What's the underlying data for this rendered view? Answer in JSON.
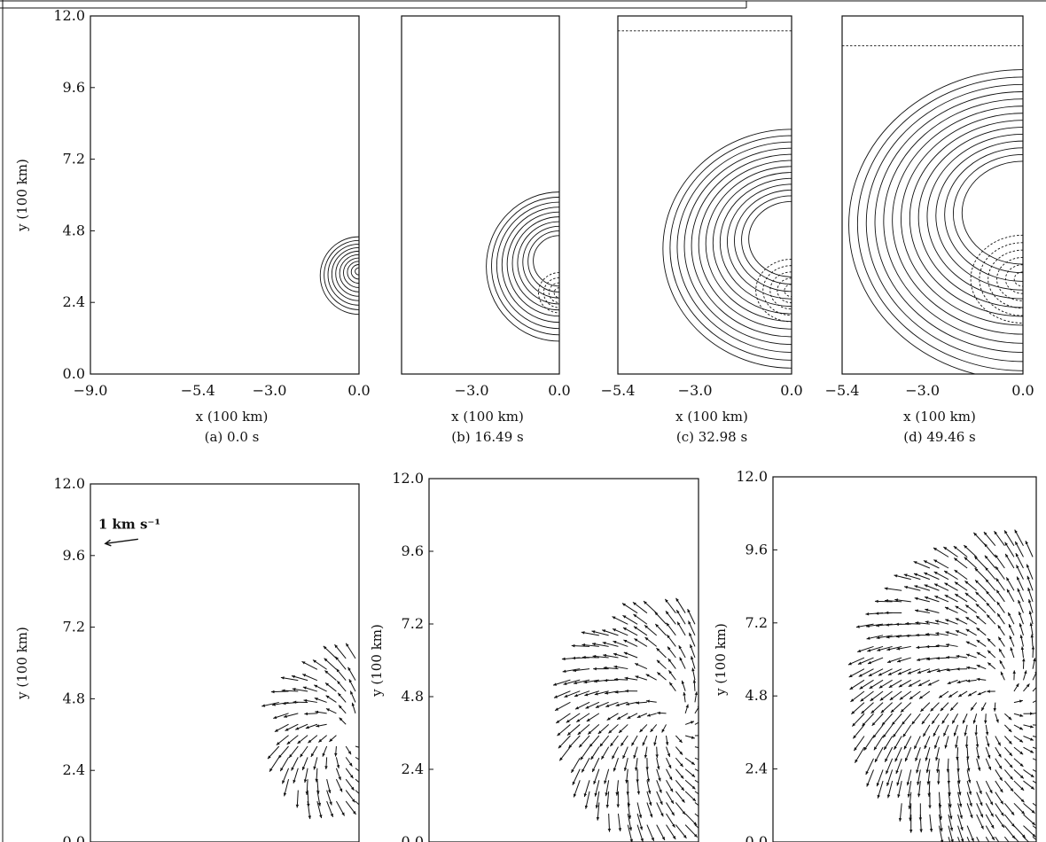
{
  "chart_data": [
    {
      "id": "a",
      "type": "contour",
      "caption": "(a)   0.0 s",
      "xlabel": "x (100 km)",
      "ylabel": "y (100 km)",
      "xlim": [
        -9.0,
        0.0
      ],
      "ylim": [
        0.0,
        12.0
      ],
      "xticks": [
        "−9.0",
        "−5.4",
        "−3.0",
        "0.0"
      ],
      "xtick_values": [
        -9.0,
        -5.4,
        -3.0,
        0.0
      ],
      "yticks": [
        "0.0",
        "2.4",
        "4.8",
        "7.2",
        "9.6",
        "12.0"
      ],
      "ytick_values": [
        0.0,
        2.4,
        4.8,
        7.2,
        9.6,
        12.0
      ],
      "feature": {
        "center": [
          0.0,
          3.3
        ],
        "radius": 1.3,
        "levels": 10,
        "dashed_levels": 0,
        "top_lines": []
      }
    },
    {
      "id": "b",
      "type": "contour",
      "caption": "(b)   16.49 s",
      "xlabel": "x (100 km)",
      "ylabel": "",
      "xlim": [
        -5.4,
        0.0
      ],
      "ylim": [
        0.0,
        12.0
      ],
      "xticks": [
        "−3.0",
        "0.0"
      ],
      "xtick_values": [
        -3.0,
        0.0
      ],
      "yticks": [],
      "ytick_values": [],
      "feature": {
        "center": [
          0.0,
          3.6
        ],
        "radius": 2.5,
        "levels": 14,
        "dashed_levels": 4,
        "top_lines": []
      }
    },
    {
      "id": "c",
      "type": "contour",
      "caption": "(c)   32.98 s",
      "xlabel": "x (100 km)",
      "ylabel": "",
      "xlim": [
        -5.4,
        0.0
      ],
      "ylim": [
        0.0,
        12.0
      ],
      "xticks": [
        "−5.4",
        "−3.0",
        "0.0"
      ],
      "xtick_values": [
        -5.4,
        -3.0,
        0.0
      ],
      "yticks": [],
      "ytick_values": [],
      "feature": {
        "center": [
          0.0,
          4.2
        ],
        "radius": 4.0,
        "levels": 18,
        "dashed_levels": 5,
        "top_lines": [
          11.5
        ]
      }
    },
    {
      "id": "d",
      "type": "contour",
      "caption": "(d)   49.46 s",
      "xlabel": "x (100 km)",
      "ylabel": "",
      "xlim": [
        -5.4,
        0.0
      ],
      "ylim": [
        0.0,
        12.0
      ],
      "xticks": [
        "−5.4",
        "−3.0",
        "0.0"
      ],
      "xtick_values": [
        -5.4,
        -3.0,
        0.0
      ],
      "yticks": [],
      "ytick_values": [],
      "feature": {
        "center": [
          0.0,
          5.0
        ],
        "radius": 5.2,
        "levels": 20,
        "dashed_levels": 6,
        "top_lines": [
          11.0
        ]
      }
    },
    {
      "id": "e",
      "type": "vector",
      "caption": "",
      "xlabel": "",
      "ylabel": "y (100 km)",
      "xlim": [
        -9.0,
        0.0
      ],
      "ylim": [
        0.0,
        12.0
      ],
      "yticks": [
        "0.0",
        "2.4",
        "4.8",
        "7.2",
        "9.6",
        "12.0"
      ],
      "ytick_values": [
        0.0,
        2.4,
        4.8,
        7.2,
        9.6,
        12.0
      ],
      "legend": {
        "label": "1 km s⁻¹",
        "arrow_start": [
          -7.4,
          10.15
        ],
        "arrow_end": [
          -8.5,
          10.0
        ]
      },
      "feature": {
        "center": [
          -0.4,
          3.6
        ],
        "radius": 2.6
      }
    },
    {
      "id": "f",
      "type": "vector",
      "caption": "",
      "xlabel": "",
      "ylabel": "y (100 km)",
      "xlim": [
        -9.0,
        0.0
      ],
      "ylim": [
        0.0,
        12.0
      ],
      "yticks": [
        "0.0",
        "2.4",
        "4.8",
        "7.2",
        "9.6",
        "12.0"
      ],
      "ytick_values": [
        0.0,
        2.4,
        4.8,
        7.2,
        9.6,
        12.0
      ],
      "feature": {
        "center": [
          -0.8,
          4.0
        ],
        "radius": 3.8
      }
    },
    {
      "id": "g",
      "type": "vector",
      "caption": "",
      "xlabel": "",
      "ylabel": "y (100 km)",
      "xlim": [
        -9.0,
        0.0
      ],
      "ylim": [
        0.0,
        12.0
      ],
      "yticks": [
        "0.0",
        "2.4",
        "4.8",
        "7.2",
        "9.6",
        "12.0"
      ],
      "ytick_values": [
        0.0,
        2.4,
        4.8,
        7.2,
        9.6,
        12.0
      ],
      "feature": {
        "center": [
          -1.2,
          4.8
        ],
        "radius": 5.0
      }
    }
  ]
}
